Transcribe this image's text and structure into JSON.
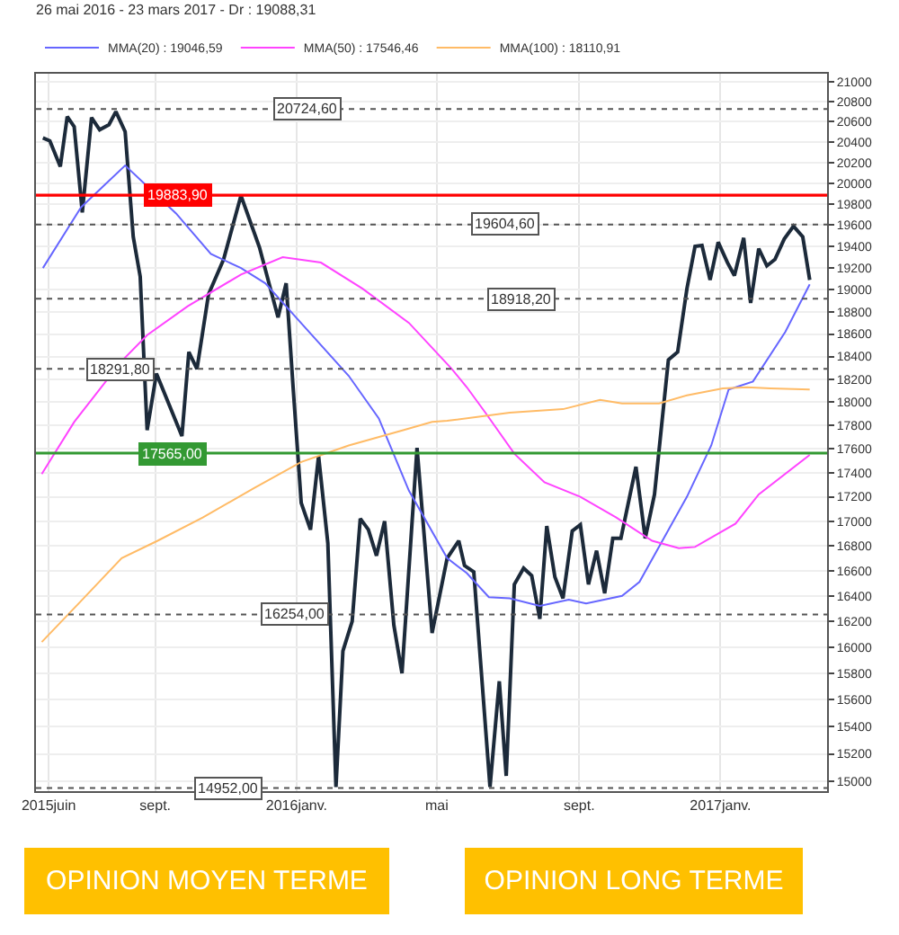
{
  "chart_data": {
    "type": "line",
    "title": "26 mai 2016 - 23 mars 2017 - Dr : 19088,31",
    "x": [
      "2015-05-27",
      "2015-06-02",
      "2015-06-11",
      "2015-06-17",
      "2015-06-23",
      "2015-06-30",
      "2015-07-08",
      "2015-07-15",
      "2015-07-23",
      "2015-07-29",
      "2015-08-06",
      "2015-08-13",
      "2015-08-19",
      "2015-08-25",
      "2015-09-02",
      "2015-09-24",
      "2015-09-30",
      "2015-10-07",
      "2015-10-17",
      "2015-10-30",
      "2015-11-14",
      "2015-11-30",
      "2015-12-16",
      "2015-12-23",
      "2015-12-29",
      "2016-01-05",
      "2016-01-13",
      "2016-01-20",
      "2016-01-28",
      "2016-02-04",
      "2016-02-10",
      "2016-02-18",
      "2016-02-25",
      "2016-03-03",
      "2016-03-10",
      "2016-03-17",
      "2016-03-25",
      "2016-04-01",
      "2016-04-14",
      "2016-04-27",
      "2016-05-10",
      "2016-05-20",
      "2016-05-25",
      "2016-06-02",
      "2016-06-16",
      "2016-06-24",
      "2016-06-30",
      "2016-07-07",
      "2016-07-15",
      "2016-07-22",
      "2016-07-29",
      "2016-08-04",
      "2016-08-11",
      "2016-08-18",
      "2016-08-26",
      "2016-09-02",
      "2016-09-09",
      "2016-09-16",
      "2016-09-23",
      "2016-09-30",
      "2016-10-07",
      "2016-10-13",
      "2016-10-20",
      "2016-10-28",
      "2016-11-05",
      "2016-11-17",
      "2016-11-25",
      "2016-12-03",
      "2016-12-10",
      "2016-12-16",
      "2016-12-23",
      "2016-12-30",
      "2017-01-07",
      "2017-01-13",
      "2017-01-21",
      "2017-01-27",
      "2017-02-03",
      "2017-02-10",
      "2017-02-17",
      "2017-02-25",
      "2017-03-05",
      "2017-03-13",
      "2017-03-19"
    ],
    "series": [
      {
        "color": "#1c2a3a",
        "values": [
          20440,
          20410,
          20160,
          20650,
          20550,
          19720,
          20640,
          20520,
          20570,
          20700,
          20500,
          19490,
          19120,
          17760,
          18250,
          17710,
          18440,
          18290,
          18960,
          19280,
          19880,
          19390,
          18750,
          19060,
          18130,
          17150,
          16930,
          17540,
          16820,
          14960,
          15970,
          16200,
          17020,
          16930,
          16720,
          17000,
          16170,
          15800,
          17610,
          16110,
          16700,
          16840,
          16640,
          16590,
          14960,
          15740,
          15040,
          16490,
          16620,
          16560,
          16220,
          16960,
          16550,
          16380,
          16920,
          16970,
          16490,
          16760,
          16420,
          16860,
          16860,
          17130,
          17450,
          16860,
          17220,
          18370,
          18440,
          19010,
          19400,
          19410,
          19090,
          19440,
          19250,
          19130,
          19480,
          18880,
          19380,
          19220,
          19280,
          19470,
          19590,
          19490,
          19090
        ]
      },
      {
        "name": "MMA(20) : 19046,59",
        "color": "#6666ff",
        "x": [
          "2015-05-27",
          "2015-06-29",
          "2015-08-06",
          "2015-09-19",
          "2015-10-19",
          "2015-11-14",
          "2015-12-05",
          "2016-01-10",
          "2016-02-15",
          "2016-03-12",
          "2016-04-07",
          "2016-05-10",
          "2016-05-27",
          "2016-06-15",
          "2016-07-03",
          "2016-07-29",
          "2016-08-23",
          "2016-09-07",
          "2016-10-08",
          "2016-10-23",
          "2016-11-13",
          "2016-12-03",
          "2016-12-24",
          "2017-01-08",
          "2017-01-29",
          "2017-02-26",
          "2017-03-19"
        ],
        "values": [
          19200,
          19770,
          20170,
          19710,
          19330,
          19200,
          19060,
          18640,
          18230,
          17860,
          17250,
          16700,
          16580,
          16390,
          16380,
          16320,
          16370,
          16340,
          16400,
          16510,
          16860,
          17200,
          17630,
          18110,
          18180,
          18620,
          19050
        ]
      },
      {
        "name": "MMA(50) : 17546,46",
        "color": "#ff44ff",
        "x": [
          "2015-05-26",
          "2015-06-23",
          "2015-08-03",
          "2015-08-25",
          "2015-09-29",
          "2015-11-14",
          "2015-12-20",
          "2016-01-22",
          "2016-02-27",
          "2016-04-07",
          "2016-05-14",
          "2016-05-27",
          "2016-06-12",
          "2016-07-07",
          "2016-08-02",
          "2016-09-02",
          "2016-10-03",
          "2016-11-03",
          "2016-11-26",
          "2016-12-10",
          "2017-01-14",
          "2017-02-03",
          "2017-03-19"
        ],
        "values": [
          17390,
          17830,
          18360,
          18590,
          18850,
          19140,
          19300,
          19250,
          19010,
          18700,
          18290,
          18130,
          17910,
          17560,
          17320,
          17200,
          17030,
          16840,
          16780,
          16790,
          16980,
          17220,
          17550
        ]
      },
      {
        "name": "MMA(100) : 18110,91",
        "color": "#ffbb66",
        "x": [
          "2015-05-26",
          "2015-06-29",
          "2015-08-03",
          "2015-09-03",
          "2015-10-12",
          "2015-11-25",
          "2016-01-05",
          "2016-02-15",
          "2016-04-02",
          "2016-04-27",
          "2016-05-10",
          "2016-07-03",
          "2016-08-18",
          "2016-09-19",
          "2016-10-08",
          "2016-11-09",
          "2016-12-03",
          "2017-01-03",
          "2017-01-24",
          "2017-02-13",
          "2017-03-19"
        ],
        "values": [
          16040,
          16360,
          16700,
          16840,
          17030,
          17270,
          17490,
          17630,
          17760,
          17830,
          17840,
          17910,
          17940,
          18020,
          17990,
          17990,
          18060,
          18120,
          18130,
          18120,
          18110
        ]
      }
    ],
    "xlim": [
      "2015-05-21",
      "2017-04-03"
    ],
    "xticks": [
      {
        "value": "2015-06-01",
        "label": "2015juin"
      },
      {
        "value": "2015-09-01",
        "label": "sept."
      },
      {
        "value": "2016-01-01",
        "label": "2016janv."
      },
      {
        "value": "2016-05-01",
        "label": "mai"
      },
      {
        "value": "2016-09-01",
        "label": "sept."
      },
      {
        "value": "2017-01-01",
        "label": "2017janv."
      }
    ],
    "ylim": [
      14930,
      21080
    ],
    "yticks": [
      15000,
      15200,
      15400,
      15600,
      15800,
      16000,
      16200,
      16400,
      16600,
      16800,
      17000,
      17200,
      17400,
      17600,
      17800,
      18000,
      18200,
      18400,
      18600,
      18800,
      19000,
      19200,
      19400,
      19600,
      19800,
      20000,
      20200,
      20400,
      20600,
      20800,
      21000
    ],
    "log": true,
    "grid": true,
    "legend": "top left",
    "ref_lines": [
      {
        "axis": "y",
        "value": 20724.6,
        "label": "20724,60",
        "color": "#555555",
        "line_style": "dotted"
      },
      {
        "axis": "y",
        "value": 19883.9,
        "label": "19883,90",
        "color": "#ff0000",
        "line_style": "solid"
      },
      {
        "axis": "y",
        "value": 19604.6,
        "label": "19604,60",
        "color": "#555555",
        "line_style": "dotted"
      },
      {
        "axis": "y",
        "value": 18918.2,
        "label": "18918,20",
        "color": "#555555",
        "line_style": "dotted"
      },
      {
        "axis": "y",
        "value": 18291.8,
        "label": "18291,80",
        "color": "#555555",
        "line_style": "dotted"
      },
      {
        "axis": "y",
        "value": 17565,
        "label": "17565,00",
        "color": "#339933",
        "line_style": "solid"
      },
      {
        "axis": "y",
        "value": 16254,
        "label": "16254,00",
        "color": "#555555",
        "line_style": "dotted"
      },
      {
        "axis": "y",
        "value": 14952,
        "label": "14952,00",
        "color": "#555555",
        "line_style": "dotted"
      }
    ],
    "annotations": [
      "OPINION MOYEN TERME",
      "OPINION LONG TERME"
    ]
  }
}
